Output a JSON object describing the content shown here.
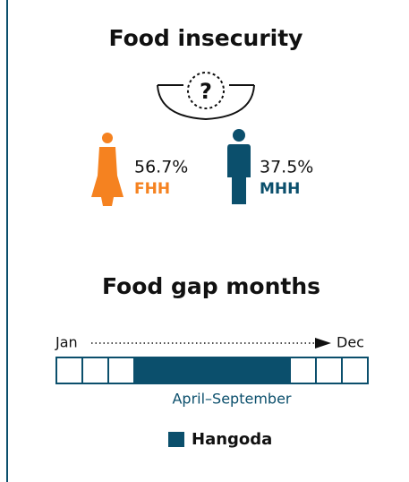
{
  "title": "Food insecurity",
  "groups": [
    {
      "value": "56.7%",
      "label": "FHH"
    },
    {
      "value": "37.5%",
      "label": "MHH"
    }
  ],
  "gap": {
    "title": "Food gap months",
    "start": "Jan",
    "end": "Dec",
    "range": "April–September",
    "legend": "Hangoda"
  }
}
